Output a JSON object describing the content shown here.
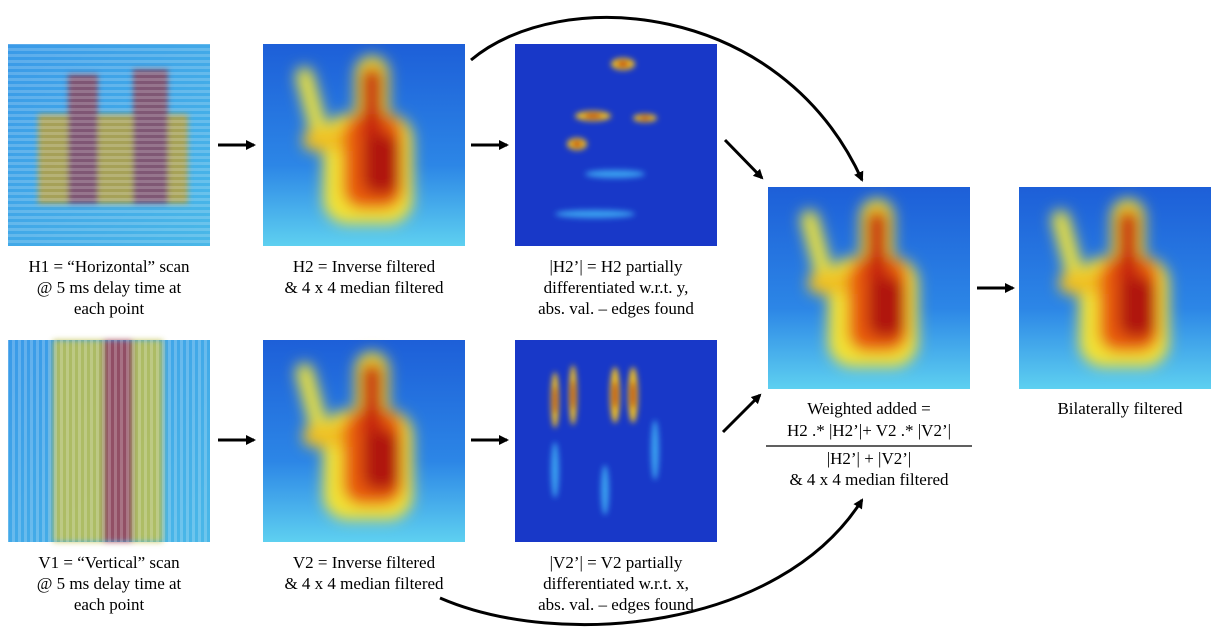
{
  "nodes": [
    {
      "caption": [
        "H1 = “Horizontal” scan",
        "@ 5 ms delay time at",
        "each point"
      ]
    },
    {
      "caption": [
        "H2 = Inverse filtered",
        "& 4 x 4 median filtered"
      ]
    },
    {
      "caption": [
        "|H2’| = H2 partially",
        "differentiated w.r.t. y,",
        "abs. val. – edges found"
      ]
    },
    {
      "caption": [
        "V1 = “Vertical” scan",
        "@ 5 ms delay time at",
        "each point"
      ]
    },
    {
      "caption": [
        "V2 = Inverse filtered",
        "& 4 x 4 median filtered"
      ]
    },
    {
      "caption": [
        "|V2’| = V2 partially",
        "differentiated w.r.t. x,",
        "abs. val. – edges found"
      ]
    },
    {
      "caption": [
        "Weighted added ="
      ],
      "numerator": "H2 .* |H2’|+ V2 .* |V2’|",
      "denominator": "|H2’| + |V2’|",
      "note": "& 4 x 4 median filtered"
    },
    {
      "caption": [
        "Bilaterally filtered"
      ]
    }
  ]
}
